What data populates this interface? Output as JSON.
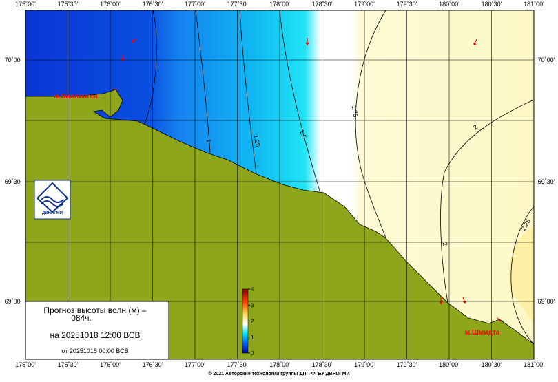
{
  "map": {
    "lon_labels": [
      "175˚00'",
      "175˚30'",
      "176˚00'",
      "176˚30'",
      "177˚00'",
      "177˚30'",
      "178˚00'",
      "178˚30'",
      "179˚00'",
      "179˚30'",
      "180˚00'",
      "180˚30'",
      "181˚00'"
    ],
    "lat_labels": [
      "70˚00'",
      "69˚30'",
      "69˚00'"
    ],
    "places": [
      "м.Биллингса",
      "м.Шмидта"
    ],
    "contour_labels": [
      "1",
      "1.25",
      "1.5",
      "1.75",
      "2",
      "2",
      "2.25"
    ],
    "logo": "ДВНИГМИ"
  },
  "info": {
    "line1": "Прогноз высоты волн (м) –",
    "line2": "084ч.",
    "line3": "на 20251018 12:00 ВСВ",
    "line4": "от 20251015 00:00 ВСВ"
  },
  "colorbar": {
    "ticks": [
      0,
      1,
      2,
      3,
      4
    ],
    "lim": [
      0,
      4
    ]
  },
  "footer": "© 2021 Авторские технологии группы ДПП ФГБУ ДВНИГМИ"
}
